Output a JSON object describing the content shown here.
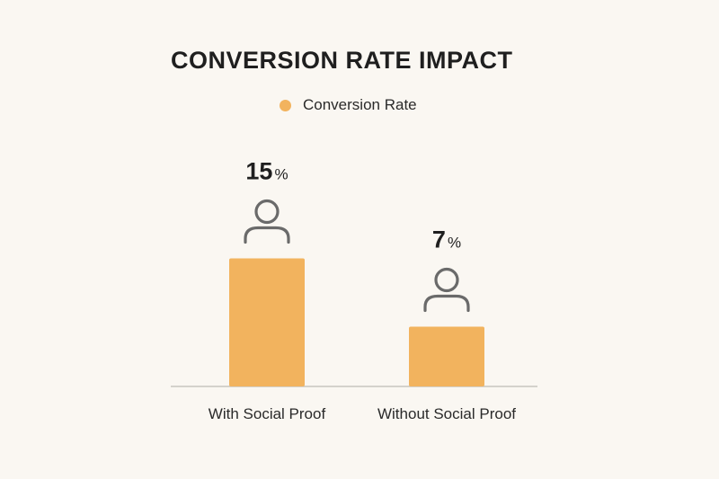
{
  "chart_data": {
    "type": "bar",
    "title": "CONVERSION RATE IMPACT",
    "categories": [
      "With Social Proof",
      "Without Social Proof"
    ],
    "series": [
      {
        "name": "Conversion Rate",
        "values": [
          15,
          7
        ],
        "unit": "%",
        "color": "#f2b35e"
      }
    ],
    "legend": "top-center",
    "grid": false,
    "icon": "person-icon"
  }
}
